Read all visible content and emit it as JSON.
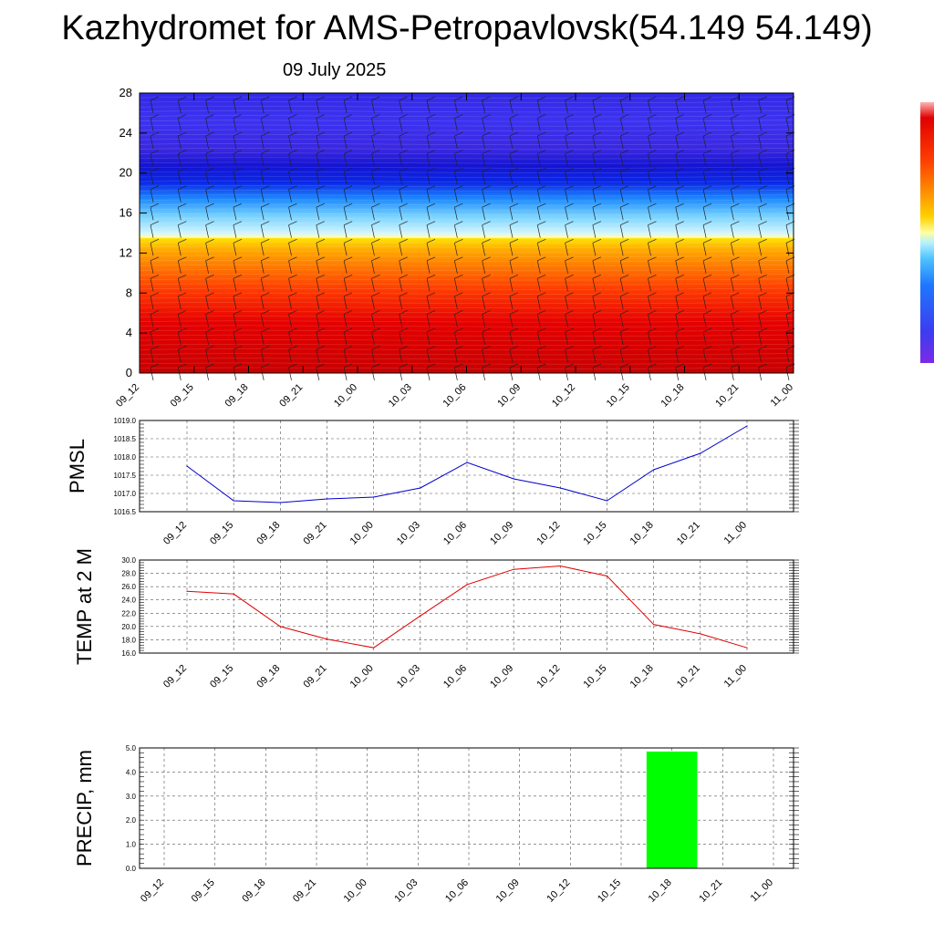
{
  "title": "Kazhydromet for AMS-Petropavlovsk(54.149 54.149)",
  "subtitle": "09 July 2025",
  "chart_data": [
    {
      "type": "heatmap",
      "x_categories": [
        "09_12",
        "09_15",
        "09_18",
        "09_21",
        "10_00",
        "10_03",
        "10_06",
        "10_09",
        "10_12",
        "10_15",
        "10_18",
        "10_21",
        "11_00"
      ],
      "ylim": [
        0,
        28
      ],
      "yticks": [
        0,
        4,
        8,
        12,
        16,
        20,
        24,
        28
      ],
      "colorbar_colors": [
        "#7d2ae8",
        "#3c3cf0",
        "#1e78ff",
        "#4dc3ff",
        "#b4f0ff",
        "#ffffa0",
        "#ffd200",
        "#ff8c00",
        "#ff3c00",
        "#e00000",
        "#ffb4b4"
      ],
      "overlay": "wind barbs"
    },
    {
      "type": "line",
      "ylabel": "PMSL",
      "x": [
        "09_12",
        "09_15",
        "09_18",
        "09_21",
        "10_00",
        "10_03",
        "10_06",
        "10_09",
        "10_12",
        "10_15",
        "10_18",
        "10_21",
        "11_00"
      ],
      "values": [
        1017.75,
        1016.8,
        1016.75,
        1016.85,
        1016.9,
        1017.15,
        1017.85,
        1017.4,
        1017.15,
        1016.8,
        1017.65,
        1018.1,
        1018.85
      ],
      "ylim": [
        1016.5,
        1019.0
      ],
      "yticks": [
        "1016.5",
        "1017.0",
        "1017.5",
        "1018.0",
        "1018.5",
        "1019.0"
      ],
      "color": "#0000cc",
      "grid": true
    },
    {
      "type": "line",
      "ylabel": "TEMP at 2 M",
      "x": [
        "09_12",
        "09_15",
        "09_18",
        "09_21",
        "10_00",
        "10_03",
        "10_06",
        "10_09",
        "10_12",
        "10_15",
        "10_18",
        "10_21",
        "11_00"
      ],
      "values": [
        25.3,
        24.9,
        20.0,
        18.1,
        16.8,
        21.6,
        26.3,
        28.6,
        29.1,
        27.6,
        20.3,
        18.9,
        16.8
      ],
      "ylim": [
        16.0,
        30.0
      ],
      "yticks": [
        "16.0",
        "18.0",
        "20.0",
        "22.0",
        "24.0",
        "26.0",
        "28.0",
        "30.0"
      ],
      "color": "#e00000",
      "grid": true
    },
    {
      "type": "bar",
      "ylabel": "PRECIP, mm",
      "x": [
        "09_12",
        "09_15",
        "09_18",
        "09_21",
        "10_00",
        "10_03",
        "10_06",
        "10_09",
        "10_12",
        "10_15",
        "10_18",
        "10_21",
        "11_00"
      ],
      "bars": [
        {
          "x": "10_18",
          "value": 4.85
        }
      ],
      "ylim": [
        0.0,
        5.0
      ],
      "yticks": [
        "0.0",
        "1.0",
        "2.0",
        "3.0",
        "4.0",
        "5.0"
      ],
      "color": "#00ff00",
      "grid": true
    }
  ]
}
